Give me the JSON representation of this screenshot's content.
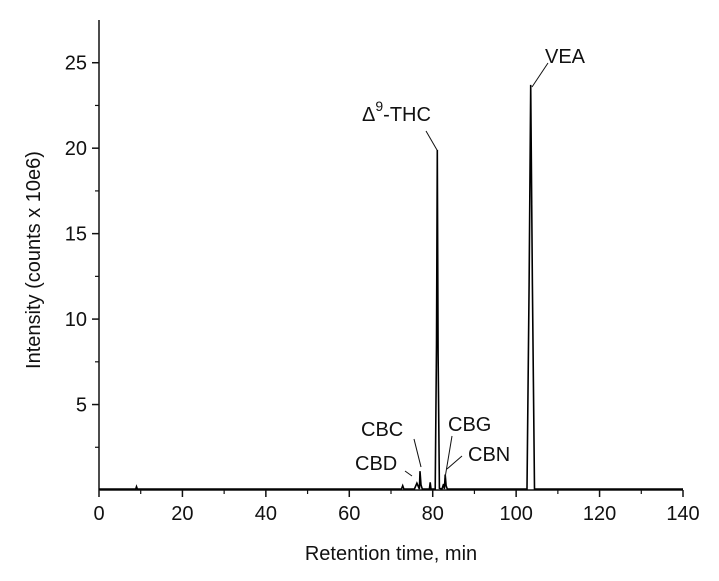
{
  "chart_data": {
    "type": "line",
    "title": "",
    "xlabel": "Retention time, min",
    "ylabel": "Intensity (counts x 10e6)",
    "xlim": [
      0,
      140
    ],
    "ylim": [
      0,
      27.5
    ],
    "xticks": [
      "0",
      "20",
      "40",
      "60",
      "80",
      "100",
      "120",
      "140"
    ],
    "yticks": [
      "5",
      "10",
      "15",
      "20",
      "25"
    ],
    "grid": false,
    "series": [
      {
        "name": "chromatogram",
        "x": [
          0,
          8.8,
          9,
          9.2,
          72.5,
          72.8,
          73.1,
          75.6,
          76.2,
          76.8,
          76.95,
          77.2,
          77.5,
          79.2,
          79.4,
          79.6,
          80.6,
          80.9,
          81.1,
          81.3,
          81.6,
          82.2,
          82.6,
          82.8,
          83.0,
          83.2,
          83.5,
          90,
          102.6,
          103.1,
          103.5,
          103.9,
          104.4,
          112,
          140
        ],
        "y": [
          0.05,
          0.05,
          0.2,
          0.05,
          0.05,
          0.25,
          0.05,
          0.05,
          0.4,
          0.05,
          1.1,
          0.3,
          0.05,
          0.05,
          0.45,
          0.05,
          0.05,
          8.5,
          19.9,
          8.0,
          0.1,
          0.05,
          0.35,
          0.05,
          0.9,
          0.25,
          0.05,
          0.05,
          0.05,
          12.0,
          23.7,
          12.0,
          0.05,
          0.05,
          0.05
        ]
      }
    ],
    "annotations": [
      {
        "label": "VEA",
        "x": 103.5,
        "y": 23.7
      },
      {
        "label_base": "Δ",
        "label_sup": "9",
        "label_rest": "-THC",
        "x": 81.1,
        "y": 19.9
      },
      {
        "label": "CBC",
        "x": 77.2,
        "y": 1.1
      },
      {
        "label": "CBD",
        "x": 76.2,
        "y": 0.4
      },
      {
        "label": "CBG",
        "x": 83.0,
        "y": 0.9
      },
      {
        "label": "CBN",
        "x": 83.2,
        "y": 0.35
      }
    ]
  }
}
